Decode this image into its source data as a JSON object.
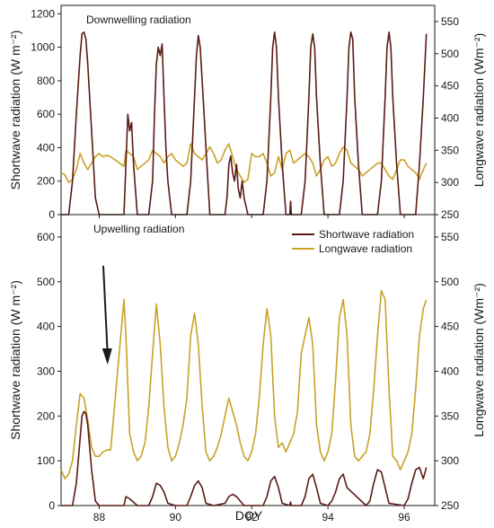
{
  "figure": {
    "xlabel": "DOY"
  },
  "colors": {
    "shortwave": "#5a1a14",
    "longwave": "#c9a227",
    "axis": "#1a1a1a"
  },
  "chart_data": [
    {
      "type": "line",
      "title": "Downwelling radiation",
      "xlabel": "DOY",
      "ylabel_left": "Shortwave radiation (W m⁻²)",
      "ylabel_right": "Longwave radiation (Wm⁻²)",
      "xlim": [
        87,
        96.8
      ],
      "ylim_left": [
        0,
        1250
      ],
      "ylim_right": [
        250,
        575
      ],
      "yticks_left": [
        "0",
        "200",
        "400",
        "600",
        "800",
        "1000",
        "1200"
      ],
      "yticks_right": [
        "250",
        "300",
        "350",
        "400",
        "450",
        "500",
        "550"
      ],
      "series": [
        {
          "axis": "left",
          "x": [
            87.0,
            87.2,
            87.3,
            87.4,
            87.5,
            87.55,
            87.6,
            87.65,
            87.7,
            87.8,
            87.9,
            88.0,
            88.3,
            88.65,
            88.7,
            88.75,
            88.8,
            88.85,
            88.9,
            89.0,
            89.3,
            89.4,
            89.45,
            89.5,
            89.55,
            89.6,
            89.65,
            89.7,
            89.75,
            89.8,
            89.9,
            90.3,
            90.4,
            90.5,
            90.55,
            90.6,
            90.65,
            90.7,
            90.8,
            90.9,
            91.3,
            91.35,
            91.4,
            91.45,
            91.5,
            91.55,
            91.6,
            91.65,
            91.7,
            91.75,
            91.8,
            91.9,
            92.3,
            92.4,
            92.5,
            92.55,
            92.6,
            92.65,
            92.7,
            92.8,
            92.9,
            93.0,
            93.02,
            93.04,
            93.3,
            93.4,
            93.5,
            93.55,
            93.6,
            93.65,
            93.7,
            93.8,
            93.9,
            94.3,
            94.4,
            94.5,
            94.55,
            94.6,
            94.65,
            94.7,
            94.8,
            94.9,
            95.3,
            95.4,
            95.5,
            95.55,
            95.6,
            95.65,
            95.7,
            95.8,
            95.9,
            96.3,
            96.4,
            96.5,
            96.58
          ],
          "y": [
            0,
            0,
            200,
            600,
            950,
            1080,
            1090,
            1050,
            900,
            500,
            100,
            0,
            0,
            0,
            300,
            600,
            500,
            550,
            300,
            0,
            0,
            200,
            600,
            900,
            1000,
            950,
            1020,
            700,
            400,
            200,
            0,
            0,
            200,
            700,
            950,
            1070,
            1000,
            800,
            400,
            0,
            0,
            100,
            300,
            350,
            250,
            200,
            300,
            150,
            100,
            200,
            100,
            0,
            0,
            200,
            700,
            1000,
            1090,
            1000,
            700,
            300,
            0,
            0,
            80,
            0,
            0,
            200,
            700,
            1000,
            1080,
            1000,
            700,
            300,
            0,
            0,
            200,
            700,
            1000,
            1090,
            1050,
            700,
            300,
            0,
            0,
            200,
            700,
            1000,
            1090,
            1000,
            700,
            300,
            0,
            0,
            300,
            700,
            1080
          ]
        },
        {
          "axis": "right",
          "x": [
            87.0,
            87.1,
            87.2,
            87.3,
            87.4,
            87.5,
            87.6,
            87.7,
            87.8,
            87.9,
            88.0,
            88.1,
            88.2,
            88.3,
            88.65,
            88.7,
            88.8,
            88.9,
            89.0,
            89.1,
            89.2,
            89.3,
            89.4,
            89.5,
            89.6,
            89.7,
            89.8,
            89.9,
            90.0,
            90.1,
            90.2,
            90.3,
            90.4,
            90.5,
            90.6,
            90.7,
            90.8,
            90.9,
            91.0,
            91.1,
            91.2,
            91.3,
            91.4,
            91.5,
            91.6,
            91.7,
            91.8,
            91.9,
            92.0,
            92.1,
            92.2,
            92.3,
            92.4,
            92.5,
            92.6,
            92.7,
            92.8,
            92.9,
            93.0,
            93.1,
            93.2,
            93.3,
            93.4,
            93.5,
            93.6,
            93.7,
            93.8,
            93.9,
            94.0,
            94.1,
            94.2,
            94.3,
            94.4,
            94.5,
            94.6,
            94.7,
            94.8,
            94.9,
            95.0,
            95.1,
            95.2,
            95.3,
            95.4,
            95.5,
            95.6,
            95.7,
            95.8,
            95.9,
            96.0,
            96.1,
            96.2,
            96.3,
            96.4,
            96.5,
            96.58
          ],
          "y": [
            315,
            312,
            300,
            305,
            320,
            345,
            330,
            320,
            330,
            340,
            345,
            340,
            342,
            340,
            325,
            350,
            345,
            340,
            320,
            325,
            330,
            335,
            350,
            345,
            340,
            330,
            340,
            345,
            335,
            330,
            325,
            330,
            360,
            345,
            340,
            335,
            345,
            355,
            345,
            330,
            335,
            350,
            360,
            340,
            320,
            310,
            300,
            305,
            345,
            340,
            340,
            345,
            330,
            310,
            315,
            340,
            320,
            345,
            350,
            330,
            335,
            340,
            345,
            340,
            330,
            310,
            320,
            335,
            340,
            325,
            330,
            345,
            355,
            350,
            330,
            325,
            320,
            310,
            315,
            320,
            325,
            330,
            330,
            320,
            310,
            305,
            320,
            335,
            335,
            325,
            320,
            315,
            305,
            320,
            330
          ]
        }
      ]
    },
    {
      "type": "line",
      "title": "Upwelling radiation",
      "xlabel": "DOY",
      "ylabel_left": "Shortwave radiation (W m⁻²)",
      "ylabel_right": "Longwave radiation (Wm⁻²)",
      "xlim": [
        87,
        96.8
      ],
      "ylim_left": [
        0,
        650
      ],
      "ylim_right": [
        250,
        575
      ],
      "xticks": [
        "88",
        "90",
        "92",
        "94",
        "96"
      ],
      "yticks_left": [
        "0",
        "100",
        "200",
        "300",
        "400",
        "500",
        "600"
      ],
      "yticks_right": [
        "250",
        "300",
        "350",
        "400",
        "450",
        "500",
        "550"
      ],
      "legend": [
        "Shortwave radiation",
        "Longwave radiation"
      ],
      "legend_position": "top-right",
      "annotation": "arrow pointing down near DOY 88.2",
      "series": [
        {
          "name": "Shortwave radiation",
          "axis": "left",
          "x": [
            87.0,
            87.3,
            87.4,
            87.5,
            87.55,
            87.6,
            87.65,
            87.7,
            87.8,
            87.9,
            88.0,
            88.3,
            88.65,
            88.7,
            88.8,
            89.0,
            89.3,
            89.4,
            89.5,
            89.6,
            89.7,
            89.8,
            90.0,
            90.3,
            90.4,
            90.5,
            90.6,
            90.7,
            90.8,
            91.0,
            91.3,
            91.4,
            91.5,
            91.6,
            91.7,
            91.8,
            92.0,
            92.3,
            92.4,
            92.5,
            92.6,
            92.7,
            92.8,
            93.0,
            93.02,
            93.04,
            93.3,
            93.4,
            93.5,
            93.6,
            93.7,
            93.8,
            94.0,
            94.1,
            94.2,
            94.3,
            94.4,
            94.5,
            95.0,
            95.1,
            95.2,
            95.3,
            95.4,
            95.5,
            95.6,
            96.0,
            96.1,
            96.2,
            96.3,
            96.4,
            96.5,
            96.58
          ],
          "y": [
            0,
            0,
            50,
            150,
            200,
            210,
            205,
            180,
            80,
            10,
            0,
            0,
            0,
            20,
            15,
            0,
            0,
            20,
            50,
            45,
            30,
            5,
            0,
            0,
            20,
            45,
            55,
            40,
            5,
            0,
            5,
            20,
            25,
            20,
            10,
            0,
            0,
            0,
            20,
            55,
            65,
            40,
            5,
            0,
            8,
            0,
            0,
            20,
            60,
            70,
            40,
            5,
            0,
            10,
            30,
            60,
            70,
            40,
            0,
            10,
            50,
            80,
            75,
            40,
            5,
            0,
            15,
            50,
            80,
            85,
            60,
            85
          ]
        },
        {
          "name": "Longwave radiation",
          "axis": "right",
          "x": [
            87.0,
            87.1,
            87.2,
            87.3,
            87.4,
            87.5,
            87.6,
            87.7,
            87.8,
            87.9,
            88.0,
            88.1,
            88.2,
            88.3,
            88.65,
            88.7,
            88.8,
            88.9,
            89.0,
            89.1,
            89.2,
            89.3,
            89.4,
            89.5,
            89.6,
            89.7,
            89.8,
            89.9,
            90.0,
            90.1,
            90.2,
            90.3,
            90.4,
            90.5,
            90.6,
            90.7,
            90.8,
            90.9,
            91.0,
            91.1,
            91.2,
            91.3,
            91.4,
            91.5,
            91.6,
            91.7,
            91.8,
            91.9,
            92.0,
            92.1,
            92.2,
            92.3,
            92.4,
            92.5,
            92.6,
            92.7,
            92.8,
            92.9,
            93.0,
            93.1,
            93.2,
            93.3,
            93.4,
            93.5,
            93.6,
            93.7,
            93.8,
            93.9,
            94.0,
            94.1,
            94.2,
            94.3,
            94.4,
            94.5,
            94.6,
            94.7,
            94.8,
            94.9,
            95.0,
            95.1,
            95.2,
            95.3,
            95.4,
            95.5,
            95.6,
            95.7,
            95.8,
            95.9,
            96.0,
            96.1,
            96.2,
            96.3,
            96.4,
            96.5,
            96.58
          ],
          "y": [
            290,
            280,
            285,
            300,
            340,
            375,
            370,
            345,
            315,
            305,
            305,
            310,
            312,
            312,
            480,
            440,
            330,
            310,
            300,
            305,
            320,
            360,
            420,
            475,
            430,
            360,
            315,
            300,
            305,
            320,
            340,
            370,
            440,
            465,
            430,
            360,
            310,
            300,
            305,
            315,
            330,
            350,
            370,
            355,
            340,
            320,
            305,
            300,
            310,
            330,
            370,
            430,
            470,
            440,
            350,
            315,
            320,
            310,
            320,
            330,
            355,
            420,
            440,
            460,
            430,
            340,
            310,
            300,
            310,
            330,
            390,
            460,
            480,
            440,
            340,
            305,
            300,
            305,
            310,
            330,
            380,
            440,
            490,
            480,
            380,
            305,
            300,
            290,
            300,
            310,
            330,
            380,
            440,
            470,
            480
          ]
        }
      ]
    }
  ]
}
